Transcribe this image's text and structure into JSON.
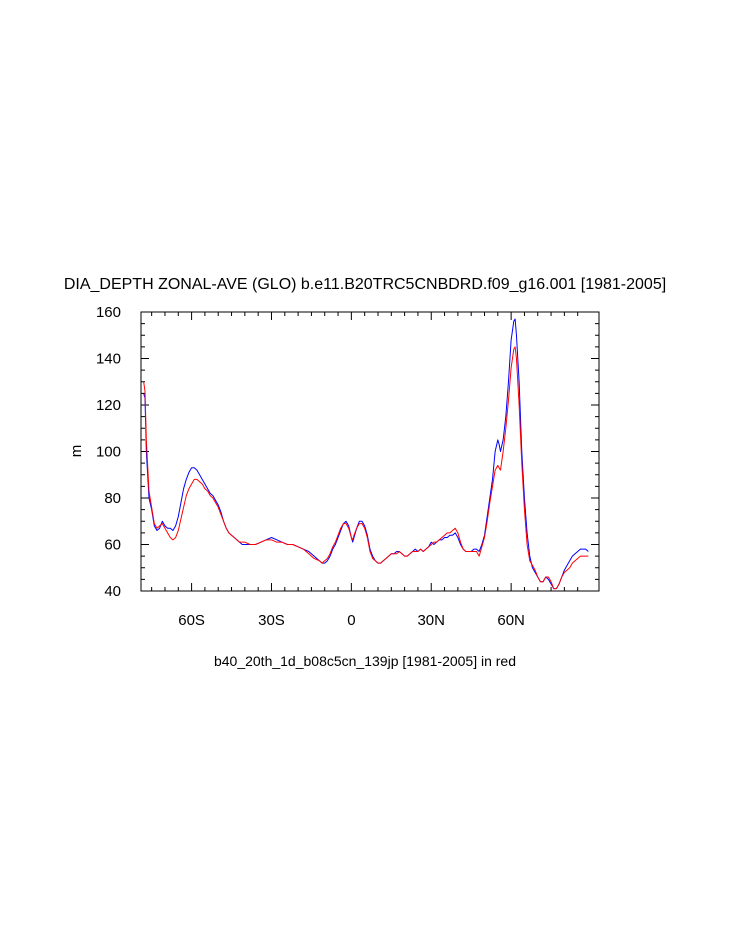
{
  "chart_data": {
    "type": "line",
    "title": "DIA_DEPTH ZONAL-AVE (GLO) b.e11.B20TRC5CNBDRD.f09_g16.001 [1981-2005]",
    "caption": "b40_20th_1d_b08c5cn_139jp [1981-2005] in red",
    "xlabel": "",
    "ylabel": "m",
    "xlim": [
      -79,
      93
    ],
    "ylim": [
      40,
      160
    ],
    "grid": false,
    "x_ticks": [
      {
        "value": -60,
        "label": "60S"
      },
      {
        "value": -30,
        "label": "30S"
      },
      {
        "value": 0,
        "label": "0"
      },
      {
        "value": 30,
        "label": "30N"
      },
      {
        "value": 60,
        "label": "60N"
      }
    ],
    "y_ticks": [
      {
        "value": 40,
        "label": "40"
      },
      {
        "value": 60,
        "label": "60"
      },
      {
        "value": 80,
        "label": "80"
      },
      {
        "value": 100,
        "label": "100"
      },
      {
        "value": 120,
        "label": "120"
      },
      {
        "value": 140,
        "label": "140"
      },
      {
        "value": 160,
        "label": "160"
      }
    ],
    "series": [
      {
        "color": "#0000ff",
        "points": [
          [
            -78,
            125
          ],
          [
            -77.5,
            123
          ],
          [
            -77,
            100
          ],
          [
            -76,
            80
          ],
          [
            -75,
            75
          ],
          [
            -74,
            68
          ],
          [
            -73,
            66
          ],
          [
            -72,
            67
          ],
          [
            -71,
            70
          ],
          [
            -70,
            68
          ],
          [
            -69,
            67
          ],
          [
            -68,
            67
          ],
          [
            -67,
            66
          ],
          [
            -66,
            68
          ],
          [
            -65,
            72
          ],
          [
            -64,
            78
          ],
          [
            -63,
            84
          ],
          [
            -62,
            88
          ],
          [
            -61,
            91
          ],
          [
            -60,
            93
          ],
          [
            -59,
            93
          ],
          [
            -58,
            92
          ],
          [
            -57,
            90
          ],
          [
            -56,
            88
          ],
          [
            -55,
            86
          ],
          [
            -54,
            84
          ],
          [
            -53,
            82
          ],
          [
            -52,
            81
          ],
          [
            -51,
            79
          ],
          [
            -50,
            77
          ],
          [
            -49,
            74
          ],
          [
            -48,
            70
          ],
          [
            -47,
            67
          ],
          [
            -46,
            65
          ],
          [
            -45,
            64
          ],
          [
            -44,
            63
          ],
          [
            -43,
            62
          ],
          [
            -42,
            61
          ],
          [
            -41,
            60
          ],
          [
            -40,
            60
          ],
          [
            -38,
            60
          ],
          [
            -36,
            60
          ],
          [
            -34,
            61
          ],
          [
            -32,
            62
          ],
          [
            -30,
            63
          ],
          [
            -28,
            62
          ],
          [
            -26,
            61
          ],
          [
            -24,
            60
          ],
          [
            -22,
            60
          ],
          [
            -20,
            59
          ],
          [
            -18,
            58
          ],
          [
            -16,
            57
          ],
          [
            -14,
            55
          ],
          [
            -12,
            53
          ],
          [
            -11,
            52
          ],
          [
            -10,
            52
          ],
          [
            -9,
            53
          ],
          [
            -8,
            55
          ],
          [
            -7,
            58
          ],
          [
            -6,
            60
          ],
          [
            -5,
            63
          ],
          [
            -4,
            66
          ],
          [
            -3,
            69
          ],
          [
            -2,
            70
          ],
          [
            -1,
            68
          ],
          [
            0,
            63
          ],
          [
            0.5,
            61
          ],
          [
            1,
            63
          ],
          [
            2,
            67
          ],
          [
            3,
            70
          ],
          [
            4,
            70
          ],
          [
            5,
            68
          ],
          [
            6,
            64
          ],
          [
            7,
            58
          ],
          [
            8,
            55
          ],
          [
            9,
            53
          ],
          [
            10,
            52
          ],
          [
            11,
            52
          ],
          [
            12,
            53
          ],
          [
            13,
            54
          ],
          [
            14,
            55
          ],
          [
            15,
            56
          ],
          [
            16,
            56
          ],
          [
            17,
            57
          ],
          [
            18,
            57
          ],
          [
            19,
            56
          ],
          [
            20,
            55
          ],
          [
            21,
            55
          ],
          [
            22,
            56
          ],
          [
            23,
            57
          ],
          [
            24,
            58
          ],
          [
            25,
            57
          ],
          [
            26,
            58
          ],
          [
            27,
            57
          ],
          [
            28,
            58
          ],
          [
            29,
            59
          ],
          [
            30,
            61
          ],
          [
            31,
            60
          ],
          [
            32,
            61
          ],
          [
            33,
            62
          ],
          [
            34,
            62
          ],
          [
            35,
            63
          ],
          [
            36,
            63
          ],
          [
            37,
            64
          ],
          [
            38,
            64
          ],
          [
            39,
            65
          ],
          [
            40,
            63
          ],
          [
            41,
            60
          ],
          [
            42,
            58
          ],
          [
            43,
            57
          ],
          [
            44,
            57
          ],
          [
            45,
            57
          ],
          [
            46,
            58
          ],
          [
            47,
            58
          ],
          [
            48,
            57
          ],
          [
            49,
            60
          ],
          [
            50,
            64
          ],
          [
            51,
            72
          ],
          [
            52,
            80
          ],
          [
            53,
            88
          ],
          [
            54,
            100
          ],
          [
            55,
            105
          ],
          [
            55.5,
            103
          ],
          [
            56,
            100
          ],
          [
            57,
            105
          ],
          [
            58,
            115
          ],
          [
            59,
            130
          ],
          [
            60,
            148
          ],
          [
            61,
            156
          ],
          [
            61.5,
            157
          ],
          [
            62,
            150
          ],
          [
            63,
            130
          ],
          [
            64,
            100
          ],
          [
            65,
            80
          ],
          [
            66,
            65
          ],
          [
            67,
            55
          ],
          [
            68,
            50
          ],
          [
            69,
            48
          ],
          [
            70,
            46
          ],
          [
            71,
            44
          ],
          [
            72,
            44
          ],
          [
            73,
            46
          ],
          [
            74,
            45
          ],
          [
            75,
            43
          ],
          [
            76,
            41
          ],
          [
            77,
            41
          ],
          [
            78,
            43
          ],
          [
            79,
            46
          ],
          [
            80,
            49
          ],
          [
            81,
            51
          ],
          [
            82,
            53
          ],
          [
            83,
            55
          ],
          [
            84,
            56
          ],
          [
            85,
            57
          ],
          [
            86,
            58
          ],
          [
            87,
            58
          ],
          [
            88,
            58
          ],
          [
            89,
            57
          ]
        ]
      },
      {
        "color": "#ff0000",
        "points": [
          [
            -78,
            130
          ],
          [
            -77.5,
            126
          ],
          [
            -77,
            105
          ],
          [
            -76,
            83
          ],
          [
            -75,
            76
          ],
          [
            -74,
            69
          ],
          [
            -73,
            67
          ],
          [
            -72,
            68
          ],
          [
            -71,
            69
          ],
          [
            -70,
            67
          ],
          [
            -69,
            65
          ],
          [
            -68,
            63
          ],
          [
            -67,
            62
          ],
          [
            -66,
            63
          ],
          [
            -65,
            66
          ],
          [
            -64,
            71
          ],
          [
            -63,
            76
          ],
          [
            -62,
            81
          ],
          [
            -61,
            84
          ],
          [
            -60,
            86
          ],
          [
            -59,
            88
          ],
          [
            -58,
            88
          ],
          [
            -57,
            87
          ],
          [
            -56,
            86
          ],
          [
            -55,
            84
          ],
          [
            -54,
            83
          ],
          [
            -53,
            81
          ],
          [
            -52,
            80
          ],
          [
            -51,
            78
          ],
          [
            -50,
            76
          ],
          [
            -49,
            73
          ],
          [
            -48,
            70
          ],
          [
            -47,
            67
          ],
          [
            -46,
            65
          ],
          [
            -45,
            64
          ],
          [
            -44,
            63
          ],
          [
            -43,
            62
          ],
          [
            -42,
            61
          ],
          [
            -41,
            61
          ],
          [
            -40,
            61
          ],
          [
            -38,
            60
          ],
          [
            -36,
            60
          ],
          [
            -34,
            61
          ],
          [
            -32,
            62
          ],
          [
            -30,
            62
          ],
          [
            -28,
            61
          ],
          [
            -26,
            61
          ],
          [
            -24,
            60
          ],
          [
            -22,
            60
          ],
          [
            -20,
            59
          ],
          [
            -18,
            58
          ],
          [
            -16,
            56
          ],
          [
            -14,
            54
          ],
          [
            -12,
            53
          ],
          [
            -11,
            52
          ],
          [
            -10,
            53
          ],
          [
            -9,
            54
          ],
          [
            -8,
            56
          ],
          [
            -7,
            59
          ],
          [
            -6,
            61
          ],
          [
            -5,
            64
          ],
          [
            -4,
            67
          ],
          [
            -3,
            69
          ],
          [
            -2,
            69
          ],
          [
            -1,
            67
          ],
          [
            0,
            63
          ],
          [
            0.5,
            62
          ],
          [
            1,
            64
          ],
          [
            2,
            67
          ],
          [
            3,
            69
          ],
          [
            4,
            69
          ],
          [
            5,
            67
          ],
          [
            6,
            63
          ],
          [
            7,
            57
          ],
          [
            8,
            54
          ],
          [
            9,
            53
          ],
          [
            10,
            52
          ],
          [
            11,
            52
          ],
          [
            12,
            53
          ],
          [
            13,
            54
          ],
          [
            14,
            55
          ],
          [
            15,
            56
          ],
          [
            16,
            56
          ],
          [
            17,
            56
          ],
          [
            18,
            57
          ],
          [
            19,
            56
          ],
          [
            20,
            55
          ],
          [
            21,
            55
          ],
          [
            22,
            56
          ],
          [
            23,
            57
          ],
          [
            24,
            57
          ],
          [
            25,
            57
          ],
          [
            26,
            58
          ],
          [
            27,
            57
          ],
          [
            28,
            58
          ],
          [
            29,
            59
          ],
          [
            30,
            60
          ],
          [
            31,
            61
          ],
          [
            32,
            61
          ],
          [
            33,
            62
          ],
          [
            34,
            63
          ],
          [
            35,
            64
          ],
          [
            36,
            65
          ],
          [
            37,
            65
          ],
          [
            38,
            66
          ],
          [
            39,
            67
          ],
          [
            40,
            65
          ],
          [
            41,
            61
          ],
          [
            42,
            58
          ],
          [
            43,
            57
          ],
          [
            44,
            57
          ],
          [
            45,
            57
          ],
          [
            46,
            57
          ],
          [
            47,
            57
          ],
          [
            48,
            55
          ],
          [
            49,
            59
          ],
          [
            50,
            63
          ],
          [
            51,
            70
          ],
          [
            52,
            78
          ],
          [
            53,
            85
          ],
          [
            54,
            92
          ],
          [
            55,
            94
          ],
          [
            56,
            92
          ],
          [
            57,
            100
          ],
          [
            58,
            110
          ],
          [
            59,
            122
          ],
          [
            60,
            136
          ],
          [
            61,
            144
          ],
          [
            61.5,
            145
          ],
          [
            62,
            140
          ],
          [
            63,
            120
          ],
          [
            64,
            95
          ],
          [
            65,
            75
          ],
          [
            66,
            60
          ],
          [
            67,
            53
          ],
          [
            68,
            51
          ],
          [
            69,
            49
          ],
          [
            70,
            46
          ],
          [
            71,
            44
          ],
          [
            72,
            44
          ],
          [
            73,
            46
          ],
          [
            74,
            46
          ],
          [
            75,
            44
          ],
          [
            76,
            41
          ],
          [
            77,
            41
          ],
          [
            78,
            43
          ],
          [
            79,
            46
          ],
          [
            80,
            48
          ],
          [
            81,
            49
          ],
          [
            82,
            50
          ],
          [
            83,
            52
          ],
          [
            84,
            53
          ],
          [
            85,
            54
          ],
          [
            86,
            55
          ],
          [
            87,
            55
          ],
          [
            88,
            55
          ],
          [
            89,
            55
          ]
        ]
      }
    ]
  }
}
